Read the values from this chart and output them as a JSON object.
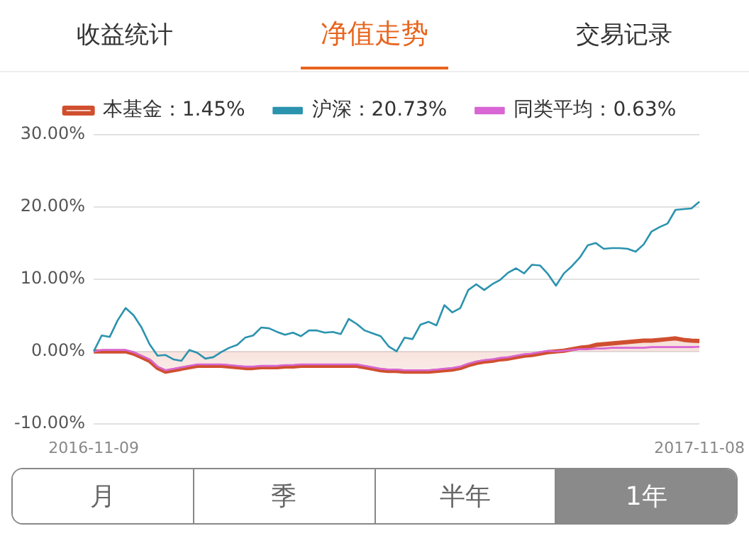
{
  "chart_data": {
    "type": "line",
    "categories": [
      "2016-11-09",
      null,
      null,
      null,
      null,
      null,
      null,
      null,
      null,
      null,
      null,
      null,
      null,
      null,
      null,
      null,
      null,
      null,
      null,
      null,
      null,
      null,
      null,
      null,
      null,
      null,
      null,
      null,
      null,
      null,
      null,
      null,
      null,
      null,
      null,
      null,
      null,
      null,
      null,
      null,
      null,
      null,
      null,
      null,
      null,
      null,
      null,
      null,
      null,
      null,
      null,
      null,
      null,
      null,
      null,
      null,
      null,
      null,
      null,
      null,
      null,
      null,
      null,
      null,
      null,
      null,
      null,
      null,
      null,
      null,
      null,
      null,
      null,
      null,
      null,
      null,
      "2017-11-08"
    ],
    "series": [
      {
        "name": "本基金：1.45%",
        "type": "area",
        "color": "#d04f2f",
        "values": [
          0,
          0,
          0,
          0,
          0,
          -0.3,
          -0.8,
          -1.3,
          -2.3,
          -2.8,
          -2.6,
          -2.4,
          -2.2,
          -2,
          -2,
          -2,
          -2,
          -2.1,
          -2.2,
          -2.3,
          -2.3,
          -2.2,
          -2.2,
          -2.2,
          -2.1,
          -2.1,
          -2,
          -2,
          -2,
          -2,
          -2,
          -2,
          -2,
          -2,
          -2.2,
          -2.4,
          -2.6,
          -2.7,
          -2.7,
          -2.8,
          -2.8,
          -2.8,
          -2.8,
          -2.7,
          -2.6,
          -2.5,
          -2.3,
          -1.9,
          -1.6,
          -1.4,
          -1.3,
          -1.1,
          -1,
          -0.8,
          -0.6,
          -0.5,
          -0.3,
          -0.1,
          0,
          0.1,
          0.3,
          0.5,
          0.6,
          0.9,
          1,
          1.1,
          1.2,
          1.3,
          1.4,
          1.5,
          1.5,
          1.6,
          1.7,
          1.8,
          1.6,
          1.5,
          1.45
        ]
      },
      {
        "name": "沪深：20.73%",
        "type": "line",
        "color": "#2b93ae",
        "values": [
          0,
          2.2,
          2,
          4.3,
          6,
          5,
          3.3,
          1,
          -0.6,
          -0.5,
          -1.1,
          -1.3,
          0.2,
          -0.2,
          -1,
          -0.8,
          -0.1,
          0.5,
          0.9,
          1.9,
          2.2,
          3.3,
          3.2,
          2.7,
          2.3,
          2.6,
          2.1,
          2.9,
          2.9,
          2.6,
          2.7,
          2.4,
          4.5,
          3.8,
          2.9,
          2.5,
          2.1,
          0.7,
          0,
          1.9,
          1.7,
          3.7,
          4.1,
          3.6,
          6.4,
          5.4,
          6,
          8.5,
          9.3,
          8.5,
          9.3,
          9.9,
          10.9,
          11.5,
          10.8,
          12,
          11.9,
          10.7,
          9.1,
          10.8,
          11.8,
          13,
          14.7,
          15,
          14.2,
          14.3,
          14.3,
          14.2,
          13.8,
          14.8,
          16.6,
          17.2,
          17.7,
          19.6,
          19.7,
          19.8,
          20.73
        ]
      },
      {
        "name": "同类平均：0.63%",
        "type": "line",
        "color": "#d866d4",
        "values": [
          0,
          0.2,
          0.2,
          0.2,
          0.2,
          -0.1,
          -0.6,
          -1.1,
          -2.1,
          -2.6,
          -2.4,
          -2.2,
          -2,
          -1.8,
          -1.8,
          -1.8,
          -1.8,
          -1.9,
          -2,
          -2.1,
          -2.1,
          -2,
          -2,
          -2,
          -1.9,
          -1.9,
          -1.8,
          -1.8,
          -1.8,
          -1.8,
          -1.8,
          -1.8,
          -1.8,
          -1.8,
          -2,
          -2.2,
          -2.4,
          -2.5,
          -2.5,
          -2.6,
          -2.6,
          -2.6,
          -2.6,
          -2.5,
          -2.4,
          -2.3,
          -2.1,
          -1.7,
          -1.4,
          -1.2,
          -1.1,
          -0.9,
          -0.8,
          -0.6,
          -0.4,
          -0.3,
          -0.1,
          0.1,
          0,
          0.1,
          0.2,
          0.3,
          0.3,
          0.4,
          0.4,
          0.5,
          0.5,
          0.5,
          0.5,
          0.5,
          0.6,
          0.6,
          0.6,
          0.6,
          0.6,
          0.6,
          0.63
        ]
      }
    ],
    "ylim": [
      -10,
      30
    ],
    "yticks": [
      {
        "value": -10,
        "label": "-10.00%"
      },
      {
        "value": 0,
        "label": "0.00%"
      },
      {
        "value": 10,
        "label": "10.00%"
      },
      {
        "value": 20,
        "label": "20.00%"
      },
      {
        "value": 30,
        "label": "30.00%"
      }
    ],
    "grid": "y",
    "legend": "top",
    "marker": "none",
    "line_style": "solid",
    "annotations": [
      "收益统计",
      "净值走势",
      "交易记录",
      "月",
      "季",
      "半年",
      "1年"
    ]
  }
}
